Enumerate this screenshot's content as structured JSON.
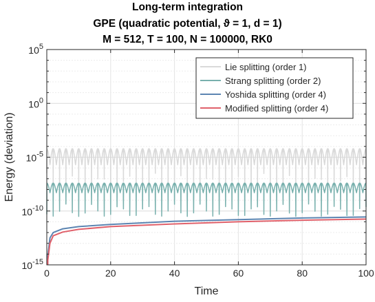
{
  "chart_data": {
    "type": "line",
    "title": [
      "Long-term integration",
      "GPE (quadratic potential, ϑ = 1, d = 1)",
      "M = 512, T = 100, N = 100000, RK0"
    ],
    "xlabel": "Time",
    "ylabel": "Energy (deviation)",
    "xlim": [
      0,
      100
    ],
    "ylim_log10": [
      -15,
      5
    ],
    "yscale": "log",
    "grid": true,
    "legend_position": "top-right",
    "xticks": [
      "0",
      "20",
      "40",
      "60",
      "80",
      "100"
    ],
    "yticks": [
      {
        "base": "10",
        "exp": "-15",
        "log10": -15
      },
      {
        "base": "10",
        "exp": "-10",
        "log10": -10
      },
      {
        "base": "10",
        "exp": "-5",
        "log10": -5
      },
      {
        "base": "10",
        "exp": "0",
        "log10": 0
      },
      {
        "base": "10",
        "exp": "5",
        "log10": 5
      }
    ],
    "series": [
      {
        "name": "Lie splitting (order 1)",
        "color": "#d9d9d9",
        "behavior": "oscillating",
        "envelope_top_log10": -4.2,
        "baseline_log10": -5.7,
        "dip_min_log10": -8.0,
        "oscillation_period": 2.0
      },
      {
        "name": "Strang splitting (order 2)",
        "color": "#78b0ad",
        "behavior": "oscillating",
        "envelope_top_log10": -7.4,
        "baseline_log10": -8.3,
        "dip_min_log10": -10.5,
        "oscillation_period": 2.0
      },
      {
        "name": "Yoshida splitting (order 4)",
        "color": "#5b84b1",
        "behavior": "growing",
        "x": [
          0.3,
          1,
          2,
          5,
          10,
          20,
          40,
          60,
          80,
          100
        ],
        "y_log10": [
          -14.2,
          -12.5,
          -12.0,
          -11.65,
          -11.45,
          -11.25,
          -10.95,
          -10.8,
          -10.65,
          -10.55
        ]
      },
      {
        "name": "Modified splitting (order 4)",
        "color": "#e0606a",
        "behavior": "growing",
        "x": [
          0.3,
          1,
          2,
          5,
          10,
          20,
          40,
          60,
          80,
          100
        ],
        "y_log10": [
          -14.6,
          -13.0,
          -12.3,
          -11.95,
          -11.7,
          -11.45,
          -11.2,
          -11.0,
          -10.85,
          -10.75
        ]
      }
    ]
  }
}
